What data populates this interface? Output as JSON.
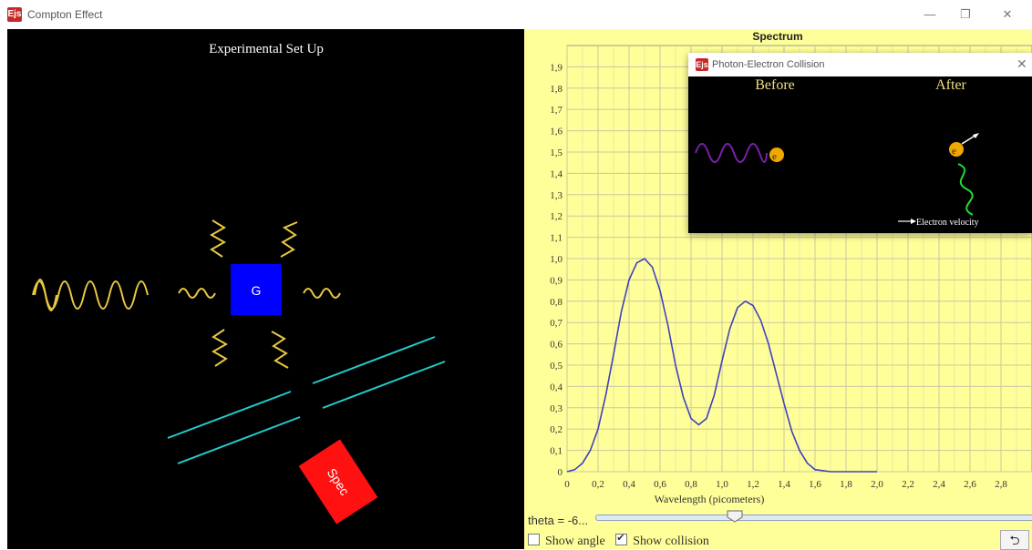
{
  "window": {
    "app_icon": "Ejs",
    "title": "Compton Effect",
    "minimize": "—",
    "restore": "❐",
    "close": "✕"
  },
  "setup": {
    "title": "Experimental Set Up",
    "target_label": "G",
    "detector_label": "Spec"
  },
  "spectrum": {
    "chart_data": {
      "type": "line",
      "title": "Spectrum",
      "xlabel": "Wavelength (picometers)",
      "ylabel": "",
      "xlim": [
        0,
        3.0
      ],
      "ylim": [
        0,
        2.0
      ],
      "grid": true,
      "x_ticks": [
        "0",
        "0,2",
        "0,4",
        "0,6",
        "0,8",
        "1,0",
        "1,2",
        "1,4",
        "1,6",
        "1,8",
        "2,0",
        "2,2",
        "2,4",
        "2,6",
        "2,8"
      ],
      "y_ticks": [
        "0",
        "0,1",
        "0,2",
        "0,3",
        "0,4",
        "0,5",
        "0,6",
        "0,7",
        "0,8",
        "0,9",
        "1,0",
        "1,1",
        "1,2",
        "1,3",
        "1,4",
        "1,5",
        "1,6",
        "1,7",
        "1,8",
        "1,9"
      ],
      "series": [
        {
          "color": "#4040c0",
          "x": [
            0,
            0.05,
            0.1,
            0.15,
            0.2,
            0.25,
            0.3,
            0.35,
            0.4,
            0.45,
            0.5,
            0.55,
            0.6,
            0.65,
            0.7,
            0.75,
            0.8,
            0.85,
            0.9,
            0.95,
            1.0,
            1.05,
            1.1,
            1.15,
            1.2,
            1.25,
            1.3,
            1.35,
            1.4,
            1.45,
            1.5,
            1.55,
            1.6,
            1.7,
            1.8,
            1.9,
            2.0
          ],
          "y": [
            0.0,
            0.01,
            0.04,
            0.1,
            0.2,
            0.36,
            0.55,
            0.75,
            0.9,
            0.98,
            1.0,
            0.96,
            0.85,
            0.69,
            0.5,
            0.35,
            0.25,
            0.22,
            0.25,
            0.36,
            0.52,
            0.67,
            0.77,
            0.8,
            0.78,
            0.71,
            0.6,
            0.46,
            0.32,
            0.19,
            0.1,
            0.04,
            0.01,
            0.0,
            0.0,
            0.0,
            0.0
          ]
        }
      ]
    }
  },
  "controls": {
    "theta_label": "theta = -6...",
    "theta_fraction": 0.32,
    "show_angle_label": "Show angle",
    "show_collision_label": "Show collision",
    "show_angle_checked": false,
    "show_collision_checked": true,
    "reset_icon": "⮌"
  },
  "popup": {
    "app_icon": "Ejs",
    "title": "Photon-Electron Collision",
    "close": "✕",
    "before_label": "Before",
    "after_label": "After",
    "electron_label": "e",
    "velocity_label": "Electron velocity"
  }
}
